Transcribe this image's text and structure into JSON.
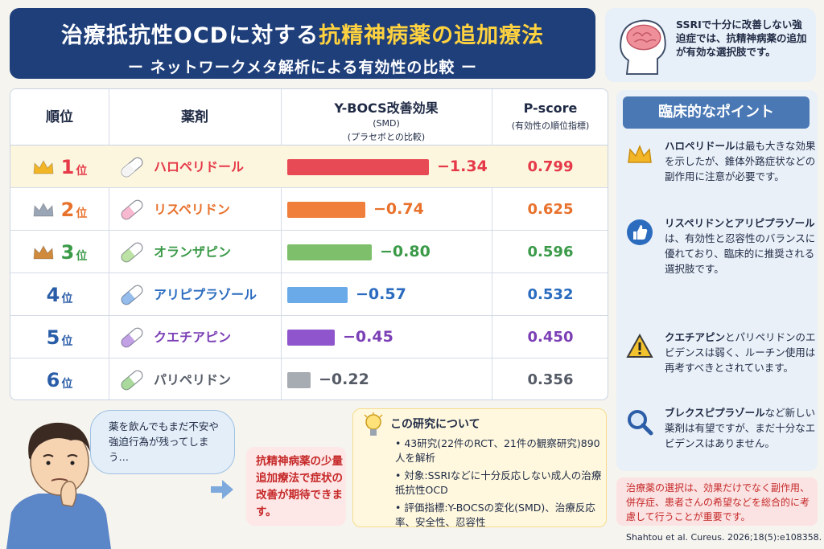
{
  "header": {
    "title_part1": "治療抵抗性OCDに対する",
    "title_highlight": "抗精神病薬の追加療法",
    "subtitle": "ー ネットワークメタ解析による有効性の比較 ー"
  },
  "tip": {
    "text": "SSRIで十分に改善しない強迫症では、抗精神病薬の追加が有効な選択肢です。",
    "icon": "head-brain-icon"
  },
  "table": {
    "headers": {
      "rank": "順位",
      "drug": "薬剤",
      "effect": "Y-BOCS改善効果",
      "effect_sub1": "(SMD)",
      "effect_sub2": "(プラセボとの比較)",
      "pscore": "P-score",
      "pscore_sub": "(有効性の順位指標)"
    },
    "rows": [
      {
        "rank": "1",
        "unit": "位",
        "drug": "ハロペリドール",
        "smd": "−1.34",
        "pscore": "0.799",
        "color": "#e53948",
        "bar_color": "#e84a55",
        "crown": "gold"
      },
      {
        "rank": "2",
        "unit": "位",
        "drug": "リスペリドン",
        "smd": "−0.74",
        "pscore": "0.625",
        "color": "#e8712c",
        "bar_color": "#ef7f3a",
        "crown": "silver"
      },
      {
        "rank": "3",
        "unit": "位",
        "drug": "オランザピン",
        "smd": "−0.80",
        "pscore": "0.596",
        "color": "#3a9a48",
        "bar_color": "#7dbf6b",
        "crown": "bronze"
      },
      {
        "rank": "4",
        "unit": "位",
        "drug": "アリピプラゾール",
        "smd": "−0.57",
        "pscore": "0.532",
        "color": "#2a6bbf",
        "bar_color": "#6aaae8",
        "crown": ""
      },
      {
        "rank": "5",
        "unit": "位",
        "drug": "クエチアピン",
        "smd": "−0.45",
        "pscore": "0.450",
        "color": "#7b3fb6",
        "bar_color": "#8f55cc",
        "crown": ""
      },
      {
        "rank": "6",
        "unit": "位",
        "drug": "パリペリドン",
        "smd": "−0.22",
        "pscore": "0.356",
        "color": "#555b66",
        "bar_color": "#a7abb2",
        "crown": ""
      }
    ]
  },
  "points": {
    "title": "臨床的なポイント",
    "items": [
      {
        "icon": "crown-icon",
        "bold": "ハロペリドール",
        "text": "は最も大きな効果を示したが、錐体外路症状などの副作用に注意が必要です。"
      },
      {
        "icon": "thumbs-up-icon",
        "bold": "リスペリドンとアリピプラゾール",
        "text": "は、有効性と忍容性のバランスに優れており、臨床的に推奨される選択肢です。"
      },
      {
        "icon": "warning-icon",
        "bold": "クエチアピン",
        "text": "とパリペリドンのエビデンスは弱く、ルーチン使用は再考すべきとされています。"
      },
      {
        "icon": "magnifier-icon",
        "bold": "ブレクスピプラゾール",
        "text": "など新しい薬剤は有望ですが、まだ十分なエビデンスはありません。"
      }
    ]
  },
  "bottom_note": "治療薬の選択は、効果だけでなく副作用、併存症、患者さんの希望などを総合的に考慮して行うことが重要です。",
  "citation": "Shahtou et al. Cureus. 2026;18(5):e108358.",
  "bubble": "薬を飲んでもまだ不安や強迫行為が残ってしまう…",
  "treatment": "抗精神病薬の少量追加療法で症状の改善が期待できます。",
  "study": {
    "title": "この研究について",
    "items": [
      "43研究(22件のRCT、21件の観察研究)890人を解析",
      "対象:SSRIなどに十分反応しない成人の治療抵抗性OCD",
      "評価指標:Y-BOCSの変化(SMD)、治療反応率、安全性、忍容性"
    ]
  },
  "chart_data": {
    "type": "bar",
    "categories": [
      "ハロペリドール",
      "リスペリドン",
      "オランザピン",
      "アリピプラゾール",
      "クエチアピン",
      "パリペリドン"
    ],
    "values": [
      -1.34,
      -0.74,
      -0.8,
      -0.57,
      -0.45,
      -0.22
    ],
    "title": "Y-BOCS改善効果",
    "xlabel": "",
    "ylabel": ""
  }
}
